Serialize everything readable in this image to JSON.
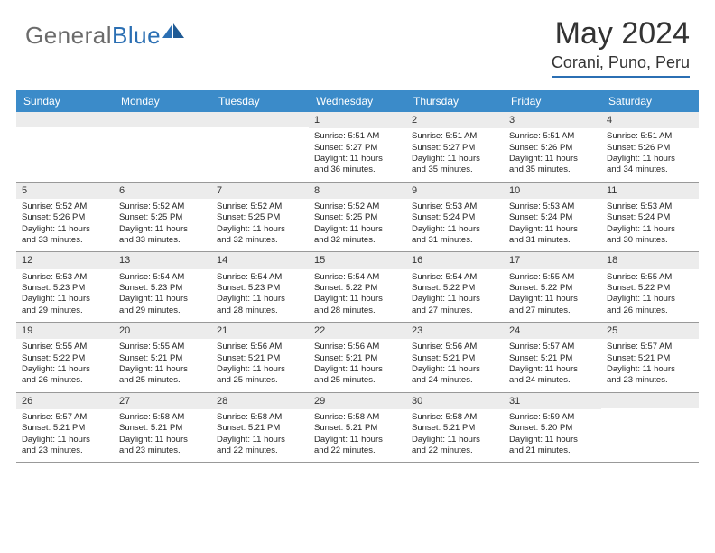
{
  "logo": {
    "text1": "General",
    "text2": "Blue"
  },
  "title": "May 2024",
  "location": "Corani, Puno, Peru",
  "colors": {
    "header_bg": "#3b8bc9",
    "header_rule": "#2b6fb3",
    "daynum_bg": "#ececec",
    "week_border": "#999999",
    "text": "#222222",
    "logo_gray": "#6b6b6b",
    "logo_blue": "#2b6fb3"
  },
  "day_names": [
    "Sunday",
    "Monday",
    "Tuesday",
    "Wednesday",
    "Thursday",
    "Friday",
    "Saturday"
  ],
  "weeks": [
    [
      {
        "n": "",
        "lines": []
      },
      {
        "n": "",
        "lines": []
      },
      {
        "n": "",
        "lines": []
      },
      {
        "n": "1",
        "lines": [
          "Sunrise: 5:51 AM",
          "Sunset: 5:27 PM",
          "Daylight: 11 hours",
          "and 36 minutes."
        ]
      },
      {
        "n": "2",
        "lines": [
          "Sunrise: 5:51 AM",
          "Sunset: 5:27 PM",
          "Daylight: 11 hours",
          "and 35 minutes."
        ]
      },
      {
        "n": "3",
        "lines": [
          "Sunrise: 5:51 AM",
          "Sunset: 5:26 PM",
          "Daylight: 11 hours",
          "and 35 minutes."
        ]
      },
      {
        "n": "4",
        "lines": [
          "Sunrise: 5:51 AM",
          "Sunset: 5:26 PM",
          "Daylight: 11 hours",
          "and 34 minutes."
        ]
      }
    ],
    [
      {
        "n": "5",
        "lines": [
          "Sunrise: 5:52 AM",
          "Sunset: 5:26 PM",
          "Daylight: 11 hours",
          "and 33 minutes."
        ]
      },
      {
        "n": "6",
        "lines": [
          "Sunrise: 5:52 AM",
          "Sunset: 5:25 PM",
          "Daylight: 11 hours",
          "and 33 minutes."
        ]
      },
      {
        "n": "7",
        "lines": [
          "Sunrise: 5:52 AM",
          "Sunset: 5:25 PM",
          "Daylight: 11 hours",
          "and 32 minutes."
        ]
      },
      {
        "n": "8",
        "lines": [
          "Sunrise: 5:52 AM",
          "Sunset: 5:25 PM",
          "Daylight: 11 hours",
          "and 32 minutes."
        ]
      },
      {
        "n": "9",
        "lines": [
          "Sunrise: 5:53 AM",
          "Sunset: 5:24 PM",
          "Daylight: 11 hours",
          "and 31 minutes."
        ]
      },
      {
        "n": "10",
        "lines": [
          "Sunrise: 5:53 AM",
          "Sunset: 5:24 PM",
          "Daylight: 11 hours",
          "and 31 minutes."
        ]
      },
      {
        "n": "11",
        "lines": [
          "Sunrise: 5:53 AM",
          "Sunset: 5:24 PM",
          "Daylight: 11 hours",
          "and 30 minutes."
        ]
      }
    ],
    [
      {
        "n": "12",
        "lines": [
          "Sunrise: 5:53 AM",
          "Sunset: 5:23 PM",
          "Daylight: 11 hours",
          "and 29 minutes."
        ]
      },
      {
        "n": "13",
        "lines": [
          "Sunrise: 5:54 AM",
          "Sunset: 5:23 PM",
          "Daylight: 11 hours",
          "and 29 minutes."
        ]
      },
      {
        "n": "14",
        "lines": [
          "Sunrise: 5:54 AM",
          "Sunset: 5:23 PM",
          "Daylight: 11 hours",
          "and 28 minutes."
        ]
      },
      {
        "n": "15",
        "lines": [
          "Sunrise: 5:54 AM",
          "Sunset: 5:22 PM",
          "Daylight: 11 hours",
          "and 28 minutes."
        ]
      },
      {
        "n": "16",
        "lines": [
          "Sunrise: 5:54 AM",
          "Sunset: 5:22 PM",
          "Daylight: 11 hours",
          "and 27 minutes."
        ]
      },
      {
        "n": "17",
        "lines": [
          "Sunrise: 5:55 AM",
          "Sunset: 5:22 PM",
          "Daylight: 11 hours",
          "and 27 minutes."
        ]
      },
      {
        "n": "18",
        "lines": [
          "Sunrise: 5:55 AM",
          "Sunset: 5:22 PM",
          "Daylight: 11 hours",
          "and 26 minutes."
        ]
      }
    ],
    [
      {
        "n": "19",
        "lines": [
          "Sunrise: 5:55 AM",
          "Sunset: 5:22 PM",
          "Daylight: 11 hours",
          "and 26 minutes."
        ]
      },
      {
        "n": "20",
        "lines": [
          "Sunrise: 5:55 AM",
          "Sunset: 5:21 PM",
          "Daylight: 11 hours",
          "and 25 minutes."
        ]
      },
      {
        "n": "21",
        "lines": [
          "Sunrise: 5:56 AM",
          "Sunset: 5:21 PM",
          "Daylight: 11 hours",
          "and 25 minutes."
        ]
      },
      {
        "n": "22",
        "lines": [
          "Sunrise: 5:56 AM",
          "Sunset: 5:21 PM",
          "Daylight: 11 hours",
          "and 25 minutes."
        ]
      },
      {
        "n": "23",
        "lines": [
          "Sunrise: 5:56 AM",
          "Sunset: 5:21 PM",
          "Daylight: 11 hours",
          "and 24 minutes."
        ]
      },
      {
        "n": "24",
        "lines": [
          "Sunrise: 5:57 AM",
          "Sunset: 5:21 PM",
          "Daylight: 11 hours",
          "and 24 minutes."
        ]
      },
      {
        "n": "25",
        "lines": [
          "Sunrise: 5:57 AM",
          "Sunset: 5:21 PM",
          "Daylight: 11 hours",
          "and 23 minutes."
        ]
      }
    ],
    [
      {
        "n": "26",
        "lines": [
          "Sunrise: 5:57 AM",
          "Sunset: 5:21 PM",
          "Daylight: 11 hours",
          "and 23 minutes."
        ]
      },
      {
        "n": "27",
        "lines": [
          "Sunrise: 5:58 AM",
          "Sunset: 5:21 PM",
          "Daylight: 11 hours",
          "and 23 minutes."
        ]
      },
      {
        "n": "28",
        "lines": [
          "Sunrise: 5:58 AM",
          "Sunset: 5:21 PM",
          "Daylight: 11 hours",
          "and 22 minutes."
        ]
      },
      {
        "n": "29",
        "lines": [
          "Sunrise: 5:58 AM",
          "Sunset: 5:21 PM",
          "Daylight: 11 hours",
          "and 22 minutes."
        ]
      },
      {
        "n": "30",
        "lines": [
          "Sunrise: 5:58 AM",
          "Sunset: 5:21 PM",
          "Daylight: 11 hours",
          "and 22 minutes."
        ]
      },
      {
        "n": "31",
        "lines": [
          "Sunrise: 5:59 AM",
          "Sunset: 5:20 PM",
          "Daylight: 11 hours",
          "and 21 minutes."
        ]
      },
      {
        "n": "",
        "lines": []
      }
    ]
  ]
}
